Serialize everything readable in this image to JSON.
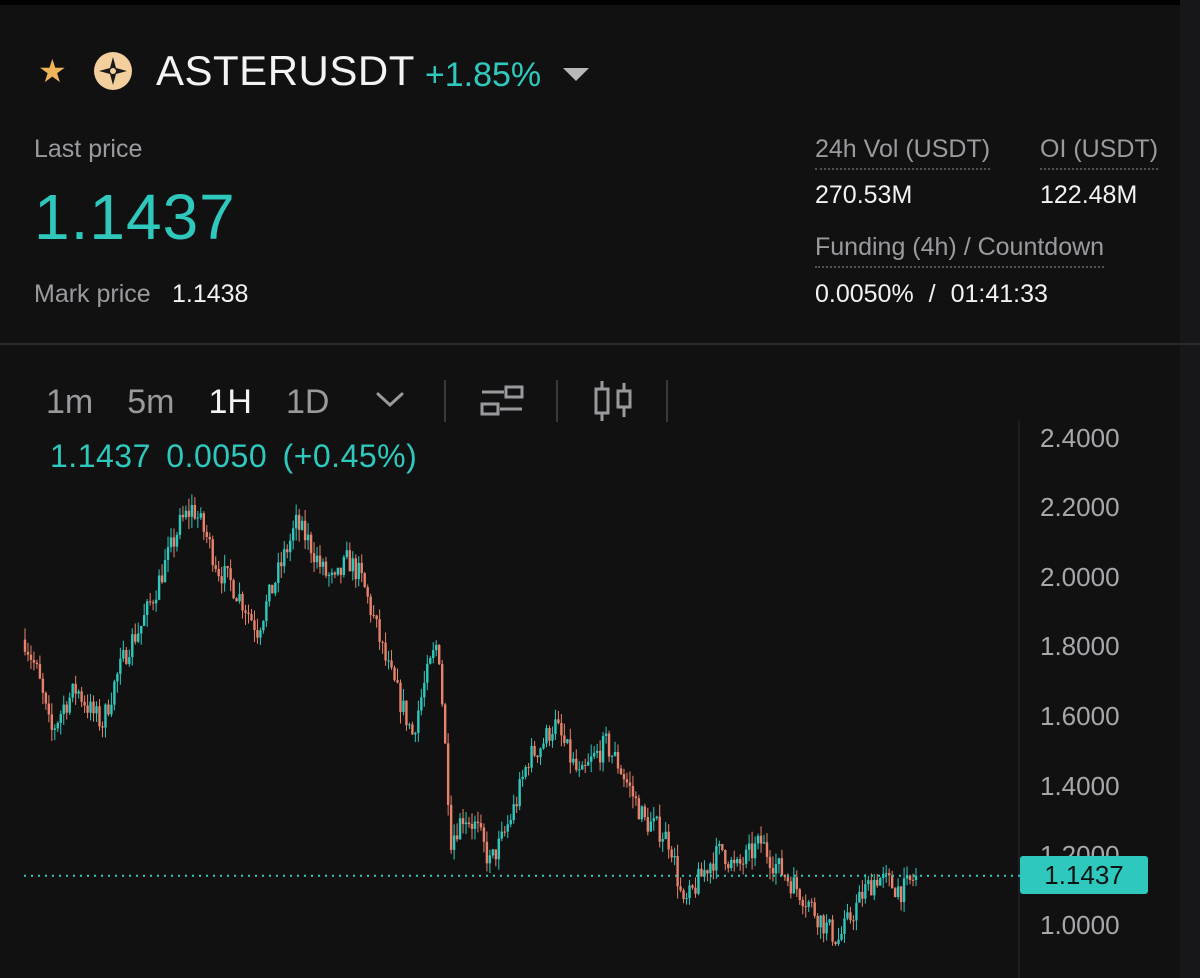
{
  "header": {
    "symbol": "ASTERUSDT",
    "change_pct": "+1.85%"
  },
  "stats": {
    "last_price_label": "Last price",
    "last_price": "1.1437",
    "mark_price_label": "Mark price",
    "mark_price": "1.1438",
    "vol_label": "24h Vol (USDT)",
    "vol_value": "270.53M",
    "oi_label": "OI (USDT)",
    "oi_value": "122.48M",
    "funding_label": "Funding (4h) / Countdown",
    "funding_rate": "0.0050%",
    "funding_sep": "/",
    "countdown": "01:41:33"
  },
  "timeframes": [
    "1m",
    "5m",
    "1H",
    "1D"
  ],
  "active_timeframe": "1H",
  "ohlc_line": {
    "price": "1.1437",
    "change": "0.0050",
    "change_pct": "(+0.45%)"
  },
  "colors": {
    "up": "#2fc8bd",
    "down": "#e8836b",
    "background": "#111112"
  },
  "icons": [
    "star-icon",
    "aster-logo-icon",
    "caret-down-icon",
    "chevron-down-icon",
    "indicator-settings-icon",
    "candlestick-type-icon"
  ],
  "chart_data": {
    "type": "candlestick",
    "ylim": [
      0.9,
      2.45
    ],
    "y_ticks": [
      "2.4000",
      "2.2000",
      "2.0000",
      "1.8000",
      "1.6000",
      "1.4000",
      "1.2000",
      "1.0000"
    ],
    "last_price_tag": "1.1437",
    "last_price_value": 1.1437,
    "close_path": [
      1.82,
      1.72,
      1.55,
      1.63,
      1.68,
      1.62,
      1.58,
      1.7,
      1.8,
      1.86,
      1.95,
      2.05,
      2.15,
      2.2,
      2.12,
      2.02,
      1.98,
      1.92,
      1.85,
      1.95,
      2.05,
      2.15,
      2.1,
      2.02,
      1.98,
      2.05,
      2.0,
      1.88,
      1.75,
      1.65,
      1.55,
      1.7,
      1.82,
      1.25,
      1.32,
      1.28,
      1.18,
      1.25,
      1.35,
      1.48,
      1.52,
      1.58,
      1.5,
      1.42,
      1.48,
      1.52,
      1.46,
      1.38,
      1.3,
      1.28,
      1.24,
      1.05,
      1.12,
      1.18,
      1.22,
      1.16,
      1.2,
      1.24,
      1.18,
      1.14,
      1.1,
      1.05,
      1.0,
      0.96,
      1.03,
      1.1,
      1.14,
      1.12,
      1.1,
      1.1437
    ]
  }
}
